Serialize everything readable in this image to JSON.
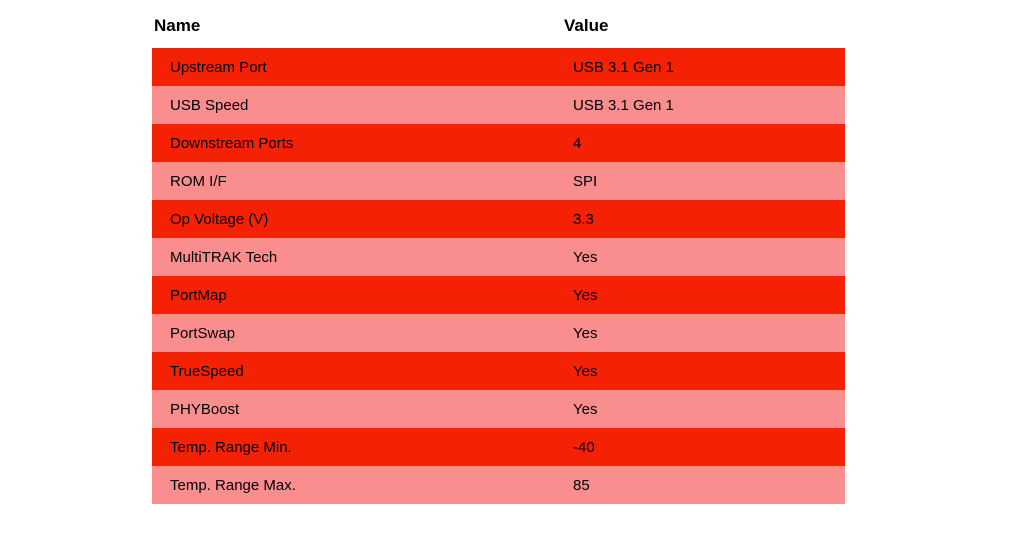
{
  "table": {
    "headers": [
      {
        "label": "Name"
      },
      {
        "label": "Value"
      }
    ],
    "rows": [
      {
        "name": "Upstream Port",
        "value": "USB 3.1 Gen 1"
      },
      {
        "name": "USB Speed",
        "value": "USB 3.1 Gen 1"
      },
      {
        "name": "Downstream Ports",
        "value": "4"
      },
      {
        "name": "ROM I/F",
        "value": "SPI"
      },
      {
        "name": "Op Voltage (V)",
        "value": "3.3"
      },
      {
        "name": "MultiTRAK Tech",
        "value": "Yes"
      },
      {
        "name": "PortMap",
        "value": "Yes"
      },
      {
        "name": "PortSwap",
        "value": "Yes"
      },
      {
        "name": "TrueSpeed",
        "value": "Yes"
      },
      {
        "name": "PHYBoost",
        "value": "Yes"
      },
      {
        "name": "Temp. Range Min.",
        "value": "-40"
      },
      {
        "name": "Temp. Range Max.",
        "value": "85"
      }
    ],
    "colors": {
      "odd_row_bg": "#f42105",
      "even_row_bg": "#fa8e8e",
      "text": "#000000",
      "page_bg": "#ffffff"
    }
  }
}
